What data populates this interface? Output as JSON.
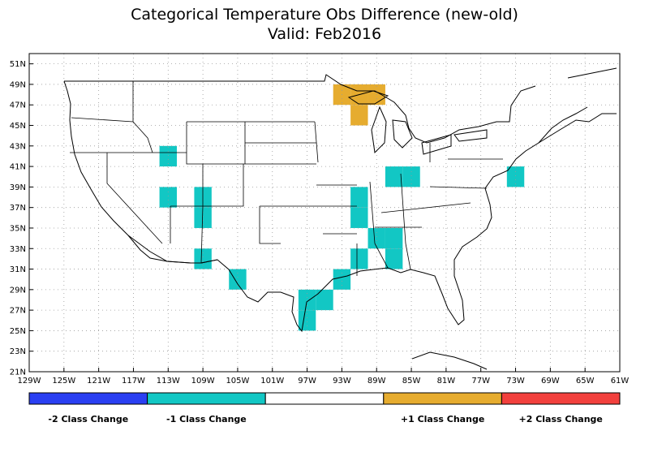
{
  "title": "Categorical Temperature Obs Difference (new-old)",
  "subtitle": "Valid: Feb2016",
  "lon_labels": [
    "129W",
    "125W",
    "121W",
    "117W",
    "113W",
    "109W",
    "105W",
    "101W",
    "97W",
    "93W",
    "89W",
    "85W",
    "81W",
    "77W",
    "73W",
    "69W",
    "65W",
    "61W"
  ],
  "lat_labels": [
    "51N",
    "49N",
    "47N",
    "45N",
    "43N",
    "41N",
    "39N",
    "37N",
    "35N",
    "33N",
    "31N",
    "29N",
    "27N",
    "25N",
    "23N",
    "21N"
  ],
  "legend": [
    {
      "label": "-2 Class Change",
      "color": "#2a3ff2"
    },
    {
      "label": "-1 Class Change",
      "color": "#12c7c4"
    },
    {
      "label": "",
      "color": "#ffffff"
    },
    {
      "label": "+1 Class Change",
      "color": "#e6ac2f"
    },
    {
      "label": "+2 Class Change",
      "color": "#f2403d"
    }
  ],
  "colors": {
    "minus1": "#12c7c4",
    "plus1": "#e6ac2f",
    "grid": "#999999"
  },
  "cells_minus1": [
    {
      "lon": -113,
      "lat": 42
    },
    {
      "lon": -113,
      "lat": 38
    },
    {
      "lon": -109,
      "lat": 38
    },
    {
      "lon": -109,
      "lat": 36
    },
    {
      "lon": -109,
      "lat": 32
    },
    {
      "lon": -105,
      "lat": 30
    },
    {
      "lon": -97,
      "lat": 28
    },
    {
      "lon": -95,
      "lat": 28
    },
    {
      "lon": -97,
      "lat": 26
    },
    {
      "lon": -93,
      "lat": 30
    },
    {
      "lon": -91,
      "lat": 38
    },
    {
      "lon": -91,
      "lat": 36
    },
    {
      "lon": -91,
      "lat": 32
    },
    {
      "lon": -89,
      "lat": 34
    },
    {
      "lon": -87,
      "lat": 34
    },
    {
      "lon": -87,
      "lat": 32
    },
    {
      "lon": -87,
      "lat": 40
    },
    {
      "lon": -85,
      "lat": 40
    },
    {
      "lon": -73,
      "lat": 40
    }
  ],
  "cells_plus1": [
    {
      "lon": -93,
      "lat": 48
    },
    {
      "lon": -91,
      "lat": 48
    },
    {
      "lon": -89,
      "lat": 48
    },
    {
      "lon": -91,
      "lat": 46
    }
  ]
}
